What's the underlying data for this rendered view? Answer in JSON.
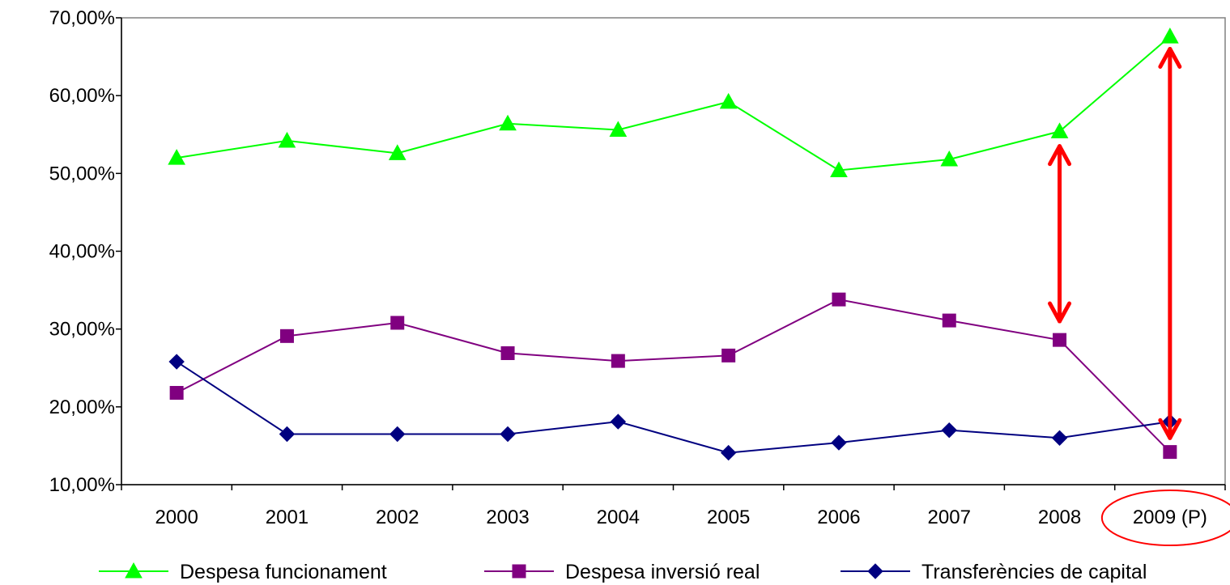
{
  "chart_data": {
    "type": "line",
    "categories": [
      "2000",
      "2001",
      "2002",
      "2003",
      "2004",
      "2005",
      "2006",
      "2007",
      "2008",
      "2009 (P)"
    ],
    "ylim": [
      0.1,
      0.7
    ],
    "yticks": [
      0.1,
      0.2,
      0.3,
      0.4,
      0.5,
      0.6,
      0.7
    ],
    "ytick_labels": [
      "10,00%",
      "20,00%",
      "30,00%",
      "40,00%",
      "50,00%",
      "60,00%",
      "70,00%"
    ],
    "grid": false,
    "legend_position": "bottom",
    "series": [
      {
        "name": "Despesa funcionament",
        "marker": "triangle",
        "color": "#00ff00",
        "values": [
          0.52,
          0.542,
          0.526,
          0.564,
          0.556,
          0.592,
          0.504,
          0.518,
          0.554,
          0.676
        ]
      },
      {
        "name": "Despesa inversió real",
        "marker": "square",
        "color": "#800080",
        "values": [
          0.218,
          0.291,
          0.308,
          0.269,
          0.259,
          0.266,
          0.338,
          0.311,
          0.286,
          0.142
        ]
      },
      {
        "name": "Transferències de capital",
        "marker": "diamond",
        "color": "#000080",
        "values": [
          0.258,
          0.165,
          0.165,
          0.165,
          0.181,
          0.141,
          0.154,
          0.17,
          0.16,
          0.181
        ]
      }
    ],
    "annotations": [
      {
        "type": "double-arrow",
        "color": "#ff0000",
        "category": "2008",
        "from": 0.535,
        "to": 0.31
      },
      {
        "type": "double-arrow",
        "color": "#ff0000",
        "category": "2009 (P)",
        "from": 0.66,
        "to": 0.16
      },
      {
        "type": "ellipse",
        "color": "#ff0000",
        "target": "2009 (P)"
      }
    ]
  }
}
